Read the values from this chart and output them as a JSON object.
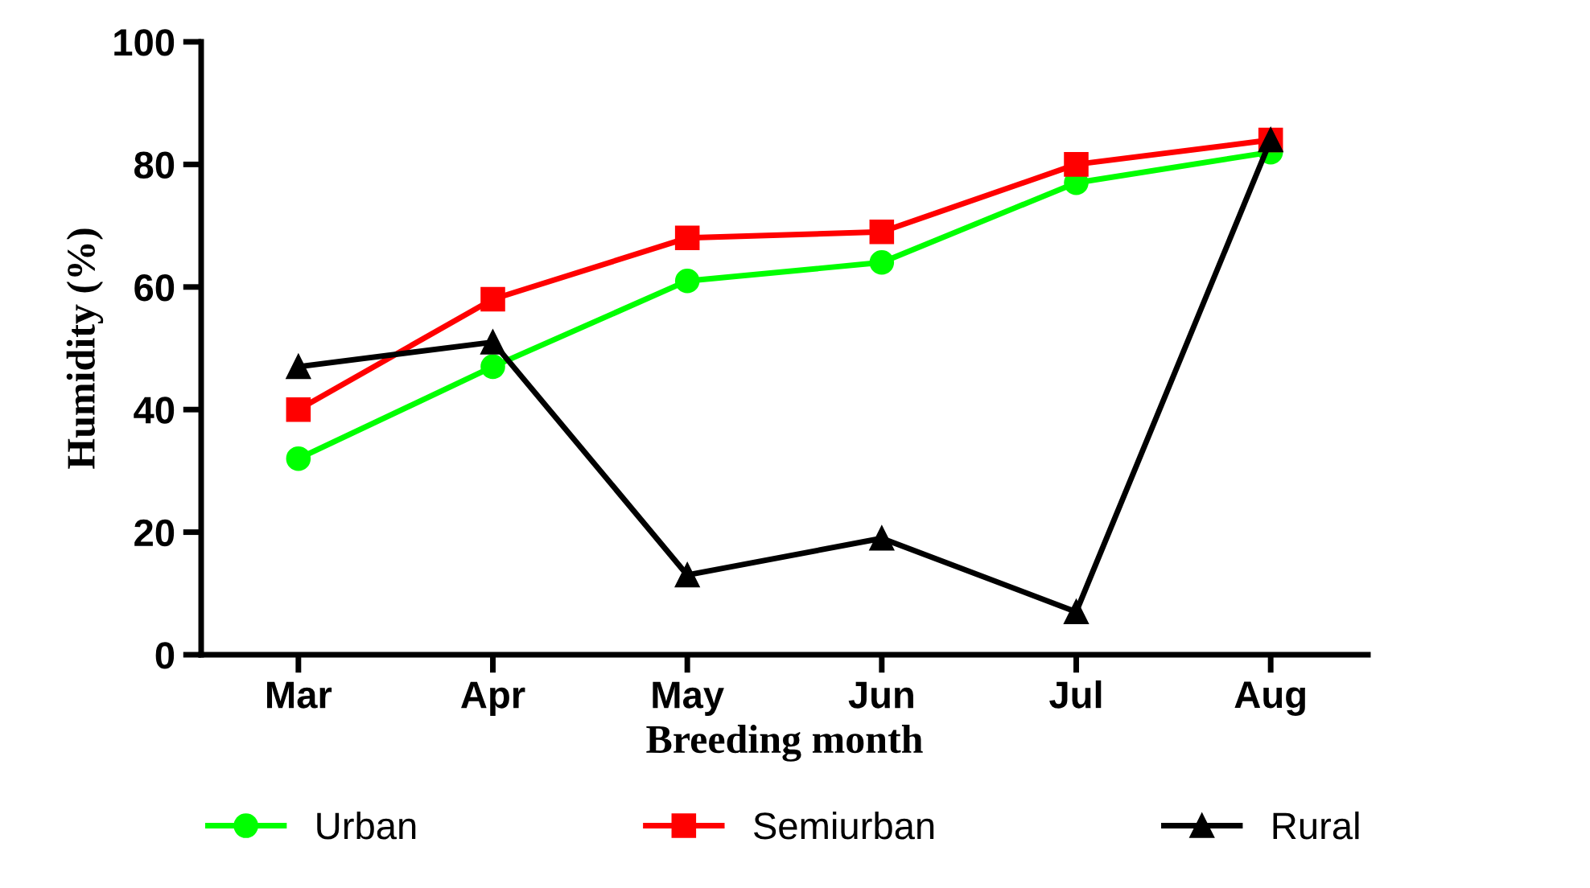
{
  "chart_data": {
    "type": "line",
    "xlabel": "Breeding month",
    "ylabel": "Humidity (%)",
    "categories": [
      "Mar",
      "Apr",
      "May",
      "Jun",
      "Jul",
      "Aug"
    ],
    "series": [
      {
        "name": "Urban",
        "color": "#00ff00",
        "marker": "circle",
        "values": [
          32,
          47,
          61,
          64,
          77,
          82
        ]
      },
      {
        "name": "Semiurban",
        "color": "#ff0000",
        "marker": "square",
        "values": [
          40,
          58,
          68,
          69,
          80,
          84
        ]
      },
      {
        "name": "Rural",
        "color": "#000000",
        "marker": "triangle",
        "values": [
          47,
          51,
          13,
          19,
          7,
          84
        ]
      }
    ],
    "ylim": [
      0,
      100
    ],
    "yticks": [
      0,
      20,
      40,
      60,
      80,
      100
    ],
    "grid": false,
    "legend": "bottom"
  }
}
